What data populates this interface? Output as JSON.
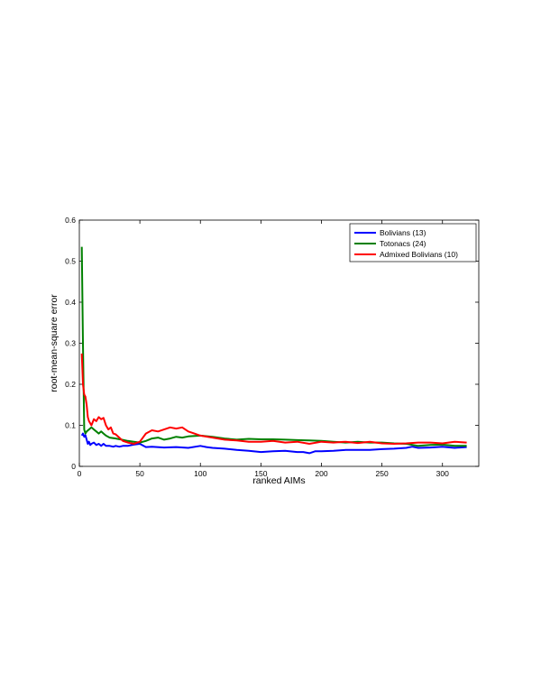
{
  "chart_data": {
    "type": "line",
    "title": "",
    "xlabel": "ranked AIMs",
    "ylabel": "root-mean-square error",
    "xlim": [
      0,
      330
    ],
    "ylim": [
      0,
      0.6
    ],
    "xticks": [
      0,
      50,
      100,
      150,
      200,
      250,
      300
    ],
    "yticks": [
      0,
      0.1,
      0.2,
      0.3,
      0.4,
      0.5,
      0.6
    ],
    "grid": false,
    "legend_position": "top-right",
    "series": [
      {
        "name": "Bolivians (13)",
        "color": "#0000ff",
        "x": [
          2,
          3,
          4,
          5,
          6,
          7,
          8,
          9,
          10,
          12,
          14,
          16,
          18,
          20,
          22,
          25,
          28,
          30,
          33,
          36,
          40,
          45,
          50,
          55,
          60,
          70,
          80,
          90,
          100,
          105,
          110,
          120,
          130,
          140,
          150,
          160,
          170,
          180,
          185,
          190,
          195,
          200,
          210,
          220,
          230,
          240,
          250,
          260,
          270,
          275,
          280,
          290,
          300,
          310,
          320
        ],
        "values": [
          0.075,
          0.08,
          0.072,
          0.076,
          0.065,
          0.055,
          0.06,
          0.052,
          0.055,
          0.058,
          0.052,
          0.055,
          0.05,
          0.055,
          0.05,
          0.05,
          0.048,
          0.05,
          0.048,
          0.05,
          0.05,
          0.053,
          0.055,
          0.047,
          0.048,
          0.046,
          0.047,
          0.045,
          0.05,
          0.047,
          0.045,
          0.043,
          0.04,
          0.038,
          0.035,
          0.037,
          0.038,
          0.035,
          0.035,
          0.032,
          0.037,
          0.037,
          0.038,
          0.04,
          0.04,
          0.04,
          0.042,
          0.043,
          0.045,
          0.048,
          0.045,
          0.046,
          0.048,
          0.045,
          0.047
        ]
      },
      {
        "name": "Totonacs (24)",
        "color": "#008000",
        "x": [
          2,
          3,
          4,
          5,
          6,
          8,
          10,
          12,
          14,
          16,
          18,
          20,
          22,
          25,
          30,
          35,
          40,
          45,
          50,
          55,
          60,
          65,
          70,
          75,
          80,
          85,
          90,
          100,
          110,
          120,
          130,
          140,
          150,
          160,
          170,
          180,
          190,
          200,
          210,
          220,
          230,
          240,
          250,
          260,
          270,
          280,
          290,
          300,
          310,
          320
        ],
        "values": [
          0.535,
          0.3,
          0.09,
          0.08,
          0.085,
          0.09,
          0.095,
          0.09,
          0.085,
          0.08,
          0.085,
          0.08,
          0.075,
          0.07,
          0.068,
          0.065,
          0.062,
          0.06,
          0.058,
          0.062,
          0.068,
          0.07,
          0.065,
          0.068,
          0.072,
          0.07,
          0.073,
          0.075,
          0.072,
          0.068,
          0.065,
          0.067,
          0.066,
          0.066,
          0.065,
          0.064,
          0.063,
          0.062,
          0.06,
          0.058,
          0.06,
          0.058,
          0.058,
          0.056,
          0.055,
          0.05,
          0.052,
          0.053,
          0.05,
          0.05
        ]
      },
      {
        "name": "Admixed Bolivians (10)",
        "color": "#ff0000",
        "x": [
          2,
          3,
          4,
          5,
          6,
          7,
          8,
          10,
          12,
          14,
          16,
          18,
          20,
          22,
          24,
          26,
          28,
          30,
          33,
          36,
          40,
          45,
          50,
          55,
          60,
          65,
          70,
          75,
          80,
          85,
          90,
          95,
          100,
          110,
          120,
          130,
          140,
          150,
          160,
          170,
          180,
          190,
          200,
          210,
          220,
          230,
          240,
          250,
          260,
          270,
          280,
          290,
          300,
          310,
          320
        ],
        "values": [
          0.275,
          0.2,
          0.175,
          0.17,
          0.15,
          0.12,
          0.11,
          0.1,
          0.115,
          0.11,
          0.12,
          0.115,
          0.118,
          0.1,
          0.09,
          0.095,
          0.08,
          0.078,
          0.07,
          0.062,
          0.058,
          0.055,
          0.06,
          0.08,
          0.088,
          0.085,
          0.09,
          0.095,
          0.092,
          0.095,
          0.085,
          0.08,
          0.075,
          0.07,
          0.065,
          0.063,
          0.06,
          0.06,
          0.062,
          0.058,
          0.06,
          0.055,
          0.06,
          0.058,
          0.06,
          0.057,
          0.06,
          0.056,
          0.055,
          0.056,
          0.058,
          0.058,
          0.056,
          0.06,
          0.058
        ]
      }
    ]
  }
}
